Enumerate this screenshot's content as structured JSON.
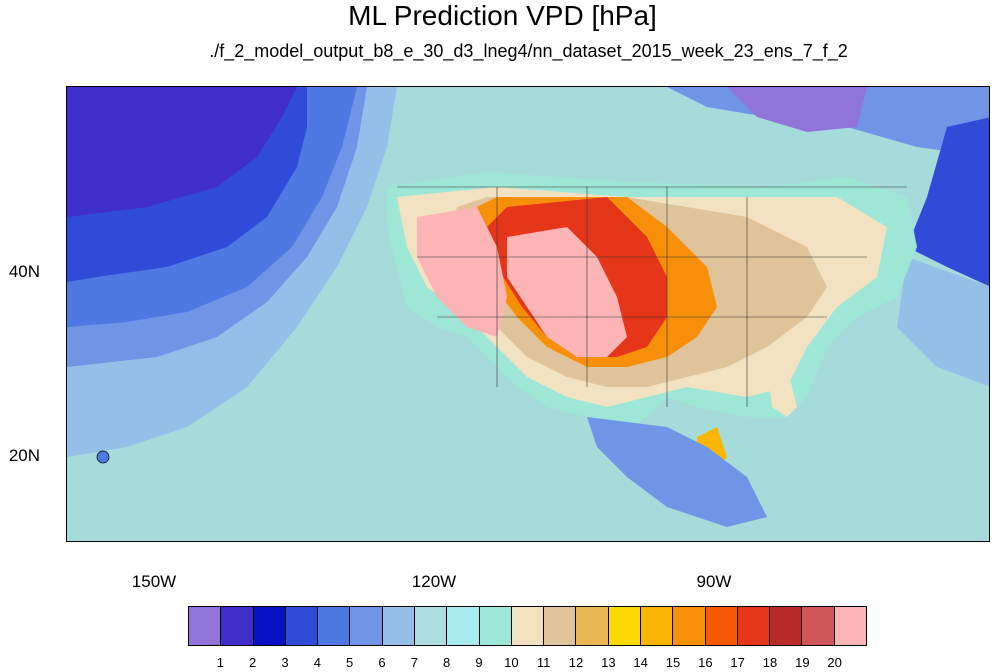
{
  "title": "ML Prediction VPD [hPa]",
  "subtitle": "./f_2_model_output_b8_e_30_d3_lneg4/nn_dataset_2015_week_23_ens_7_f_2",
  "map": {
    "lat_labels": [
      "40N",
      "20N"
    ],
    "lon_labels": [
      "150W",
      "120W",
      "90W"
    ],
    "ocean_base": "#a6dbdc"
  },
  "colorbar": {
    "colors": [
      "#9174d8",
      "#3f2ec9",
      "#0a11c5",
      "#2f4bd8",
      "#4f79e2",
      "#6e95e6",
      "#93c0e8",
      "#abdcdf",
      "#a7ebf0",
      "#9ee7d6",
      "#f3e2c1",
      "#dfc39a",
      "#e8b653",
      "#fbd904",
      "#f9b602",
      "#f88f08",
      "#f65a06",
      "#e5361a",
      "#b92b2b",
      "#cf5757",
      "#fcb4b4"
    ],
    "labels": [
      "1",
      "2",
      "3",
      "4",
      "5",
      "6",
      "7",
      "8",
      "9",
      "10",
      "11",
      "12",
      "13",
      "14",
      "15",
      "16",
      "17",
      "18",
      "19",
      "20"
    ]
  }
}
